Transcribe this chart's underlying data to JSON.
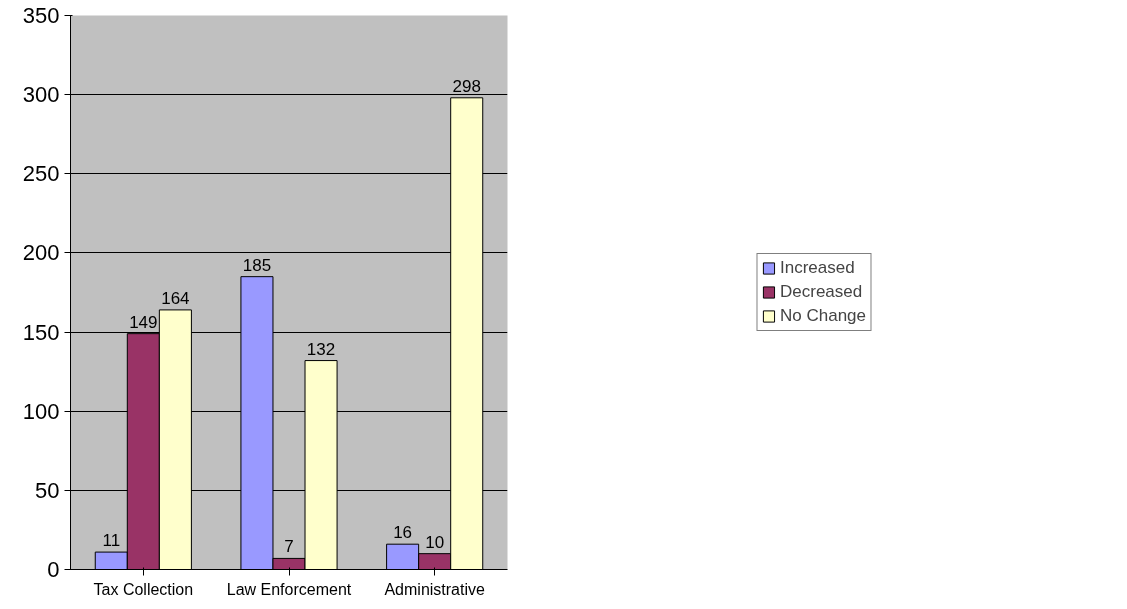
{
  "chart_data": {
    "type": "bar",
    "categories": [
      "Tax Collection",
      "Law Enforcement",
      "Administrative"
    ],
    "series": [
      {
        "name": "Increased",
        "color": "#9999ff",
        "values": [
          11,
          185,
          16
        ]
      },
      {
        "name": "Decreased",
        "color": "#993366",
        "values": [
          149,
          7,
          10
        ]
      },
      {
        "name": "No Change",
        "color": "#ffffcc",
        "values": [
          164,
          132,
          298
        ]
      }
    ],
    "ylim": [
      0,
      350
    ],
    "yticks": [
      0,
      50,
      100,
      150,
      200,
      250,
      300,
      350
    ],
    "grid": "y",
    "legend": "right",
    "data_labels": true
  }
}
